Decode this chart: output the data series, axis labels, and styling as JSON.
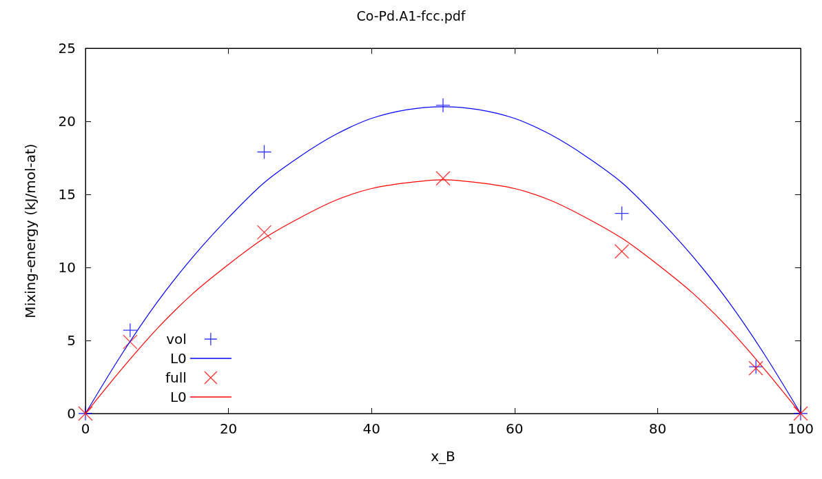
{
  "chart_data": {
    "type": "scatter",
    "title": "Co-Pd.A1-fcc.pdf",
    "xlabel": "x_B",
    "ylabel": "Mixing-energy (kJ/mol-at)",
    "xlim": [
      0,
      100
    ],
    "xticks": [
      0,
      20,
      40,
      60,
      80,
      100
    ],
    "ylim": [
      0,
      25
    ],
    "yticks": [
      0,
      5,
      10,
      15,
      20,
      25
    ],
    "grid": false,
    "legend": "bottom left",
    "series": [
      {
        "name": "vol",
        "marker": "plus",
        "color": "#0000ff",
        "x": [
          0,
          6.25,
          25,
          50,
          75,
          93.75,
          100
        ],
        "values": [
          0,
          5.7,
          17.9,
          21.1,
          13.7,
          3.2,
          0
        ]
      },
      {
        "name": "L0",
        "type": "line",
        "marker": "none",
        "color": "#0000ff",
        "x": [
          0,
          5,
          10,
          15,
          20,
          25,
          30,
          35,
          40,
          45,
          50,
          55,
          60,
          65,
          70,
          75,
          80,
          85,
          90,
          95,
          100
        ],
        "values": [
          0,
          4,
          7.6,
          10.7,
          13.4,
          15.8,
          17.6,
          19.1,
          20.2,
          20.8,
          21,
          20.8,
          20.2,
          19.1,
          17.6,
          15.8,
          13.4,
          10.7,
          7.6,
          4,
          0
        ]
      },
      {
        "name": "full",
        "marker": "cross",
        "color": "#ff0000",
        "x": [
          0,
          6.25,
          25,
          50,
          75,
          93.75,
          100
        ],
        "values": [
          0,
          4.9,
          12.4,
          16.1,
          11.1,
          3.1,
          0
        ]
      },
      {
        "name": "L0",
        "type": "line",
        "marker": "none",
        "color": "#ff0000",
        "x": [
          0,
          5,
          10,
          15,
          20,
          25,
          30,
          35,
          40,
          45,
          50,
          55,
          60,
          65,
          70,
          75,
          80,
          85,
          90,
          95,
          100
        ],
        "values": [
          0,
          3,
          5.8,
          8.2,
          10.2,
          12,
          13.4,
          14.6,
          15.4,
          15.8,
          16,
          15.8,
          15.4,
          14.6,
          13.4,
          12,
          10.2,
          8.2,
          5.8,
          3,
          0
        ]
      }
    ]
  }
}
